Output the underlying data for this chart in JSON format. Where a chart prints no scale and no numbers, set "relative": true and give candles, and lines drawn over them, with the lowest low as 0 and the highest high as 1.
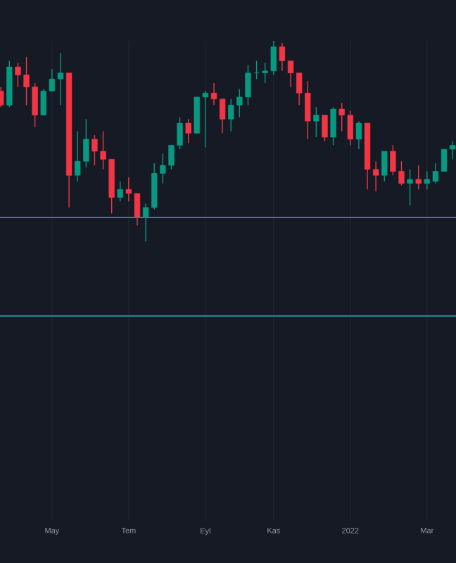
{
  "chart_data": {
    "type": "candlestick",
    "relative": true,
    "grid": "x",
    "categories": [
      null,
      null,
      null,
      null,
      null,
      null,
      "May",
      null,
      null,
      null,
      null,
      null,
      null,
      null,
      null,
      "Tem",
      null,
      null,
      null,
      null,
      null,
      null,
      null,
      null,
      "Eyl",
      null,
      null,
      null,
      null,
      null,
      null,
      null,
      "Kas",
      null,
      null,
      null,
      null,
      null,
      null,
      null,
      null,
      "2022",
      null,
      null,
      null,
      null,
      null,
      null,
      null,
      null,
      "Mar",
      null,
      null,
      null
    ],
    "ohlc": [
      [
        0.75,
        0.77,
        0.67,
        0.68
      ],
      [
        0.68,
        0.9,
        0.67,
        0.87
      ],
      [
        0.87,
        0.89,
        0.77,
        0.83
      ],
      [
        0.83,
        0.92,
        0.68,
        0.77
      ],
      [
        0.77,
        0.79,
        0.57,
        0.63
      ],
      [
        0.63,
        0.76,
        0.63,
        0.75
      ],
      [
        0.75,
        0.86,
        0.75,
        0.81
      ],
      [
        0.81,
        0.94,
        0.68,
        0.84
      ],
      [
        0.84,
        0.84,
        0.17,
        0.33
      ],
      [
        0.33,
        0.55,
        0.3,
        0.4
      ],
      [
        0.4,
        0.61,
        0.37,
        0.51
      ],
      [
        0.51,
        0.53,
        0.38,
        0.45
      ],
      [
        0.45,
        0.55,
        0.36,
        0.41
      ],
      [
        0.41,
        0.41,
        0.14,
        0.22
      ],
      [
        0.22,
        0.3,
        0.2,
        0.26
      ],
      [
        0.26,
        0.32,
        0.2,
        0.24
      ],
      [
        0.24,
        0.24,
        0.08,
        0.12
      ],
      [
        0.12,
        0.19,
        0,
        0.17
      ],
      [
        0.17,
        0.39,
        0.16,
        0.34
      ],
      [
        0.34,
        0.44,
        0.29,
        0.38
      ],
      [
        0.38,
        0.48,
        0.36,
        0.48
      ],
      [
        0.48,
        0.62,
        0.46,
        0.59
      ],
      [
        0.59,
        0.61,
        0.49,
        0.54
      ],
      [
        0.54,
        0.72,
        0.54,
        0.72
      ],
      [
        0.72,
        0.75,
        0.47,
        0.74
      ],
      [
        0.74,
        0.79,
        0.68,
        0.71
      ],
      [
        0.71,
        0.71,
        0.54,
        0.61
      ],
      [
        0.61,
        0.71,
        0.55,
        0.68
      ],
      [
        0.68,
        0.76,
        0.62,
        0.72
      ],
      [
        0.72,
        0.88,
        0.68,
        0.84
      ],
      [
        0.84,
        0.9,
        0.81,
        0.84
      ],
      [
        0.84,
        0.89,
        0.79,
        0.85
      ],
      [
        0.85,
        1,
        0.83,
        0.97
      ],
      [
        0.97,
        0.99,
        0.85,
        0.9
      ],
      [
        0.9,
        0.9,
        0.77,
        0.84
      ],
      [
        0.84,
        0.84,
        0.68,
        0.74
      ],
      [
        0.74,
        0.8,
        0.51,
        0.6
      ],
      [
        0.6,
        0.67,
        0.52,
        0.63
      ],
      [
        0.63,
        0.63,
        0.5,
        0.52
      ],
      [
        0.52,
        0.67,
        0.48,
        0.66
      ],
      [
        0.66,
        0.69,
        0.55,
        0.63
      ],
      [
        0.63,
        0.65,
        0.48,
        0.51
      ],
      [
        0.51,
        0.6,
        0.46,
        0.59
      ],
      [
        0.59,
        0.59,
        0.26,
        0.36
      ],
      [
        0.36,
        0.4,
        0.25,
        0.33
      ],
      [
        0.33,
        0.45,
        0.3,
        0.45
      ],
      [
        0.45,
        0.48,
        0.33,
        0.35
      ],
      [
        0.35,
        0.4,
        0.28,
        0.29
      ],
      [
        0.29,
        0.36,
        0.18,
        0.31
      ],
      [
        0.31,
        0.38,
        0.26,
        0.29
      ],
      [
        0.29,
        0.35,
        0.26,
        0.31
      ],
      [
        0.3,
        0.39,
        0.29,
        0.35
      ],
      [
        0.35,
        0.46,
        0.35,
        0.46
      ],
      [
        0.46,
        0.5,
        0.41,
        0.48
      ]
    ],
    "colors": [
      "#f23645",
      "#089981",
      "#f23645",
      "#f23645",
      "#f23645",
      "#089981",
      "#089981",
      "#089981",
      "#f23645",
      "#089981",
      "#089981",
      "#f23645",
      "#f23645",
      "#f23645",
      "#089981",
      "#f23645",
      "#f23645",
      "#089981",
      "#089981",
      "#089981",
      "#089981",
      "#089981",
      "#f23645",
      "#089981",
      "#089981",
      "#f23645",
      "#f23645",
      "#089981",
      "#089981",
      "#089981",
      "#089981",
      "#089981",
      "#089981",
      "#f23645",
      "#f23645",
      "#f23645",
      "#f23645",
      "#089981",
      "#f23645",
      "#089981",
      "#f23645",
      "#f23645",
      "#089981",
      "#f23645",
      "#f23645",
      "#089981",
      "#f23645",
      "#f23645",
      "#089981",
      "#f23645",
      "#089981",
      "#089981",
      "#089981",
      "#089981"
    ],
    "ref_lines": [
      {
        "axis": "y",
        "value": 0.12,
        "color": "#1f8a93"
      },
      {
        "axis": "y",
        "value": -0.37,
        "color": "#1f8a93"
      }
    ]
  }
}
